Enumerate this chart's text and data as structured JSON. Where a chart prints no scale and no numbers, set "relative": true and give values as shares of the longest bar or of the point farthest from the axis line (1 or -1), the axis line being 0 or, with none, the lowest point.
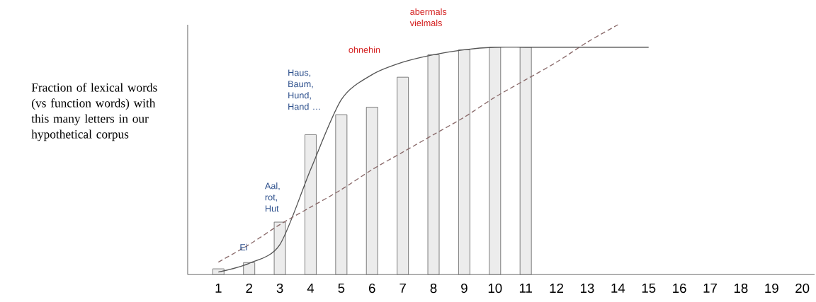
{
  "chart_data": {
    "type": "bar",
    "relative": true,
    "ylabel": "Fraction of lexical words (vs function words) with this many letters in our hypothetical corpus",
    "categories": [
      "1",
      "2",
      "3",
      "4",
      "5",
      "6",
      "7",
      "8",
      "9",
      "10",
      "11",
      "12",
      "13",
      "14",
      "15",
      "16",
      "17",
      "18",
      "19",
      "20"
    ],
    "series": [
      {
        "color": "#ececec",
        "values": [
          0.023,
          0.048,
          0.21,
          0.56,
          0.64,
          0.67,
          0.79,
          0.88,
          0.9,
          0.91,
          0.91,
          null,
          null,
          null,
          null,
          null,
          null,
          null,
          null,
          null
        ]
      },
      {
        "type": "line",
        "color": "#555555",
        "values": [
          0.01,
          0.045,
          0.12,
          0.42,
          0.7,
          0.8,
          0.85,
          0.88,
          0.9,
          0.91,
          0.91,
          0.91,
          0.91,
          0.91,
          0.91,
          null,
          null,
          null,
          null,
          null
        ]
      },
      {
        "type": "line",
        "color": "#8a6a6a",
        "line_style": "dashed",
        "values": [
          0.05,
          0.12,
          0.2,
          0.27,
          0.34,
          0.42,
          0.49,
          0.56,
          0.63,
          0.71,
          0.78,
          0.85,
          0.93,
          1.0,
          null,
          null,
          null,
          null,
          null,
          null
        ]
      }
    ],
    "annotations": [
      "Ei",
      "Aal, rot, Hut",
      "Haus, Baum, Hund, Hand …",
      "ohnehin",
      "abermals vielmals"
    ]
  }
}
